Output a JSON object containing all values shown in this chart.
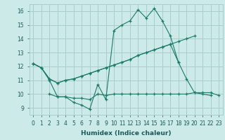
{
  "xlabel": "Humidex (Indice chaleur)",
  "bg_color": "#cceae7",
  "grid_color": "#aacccc",
  "line_color": "#1a7a6a",
  "ylim": [
    8.5,
    16.5
  ],
  "xlim": [
    -0.5,
    23.5
  ],
  "yticks": [
    9,
    10,
    11,
    12,
    13,
    14,
    15,
    16
  ],
  "xticks": [
    0,
    1,
    2,
    3,
    4,
    5,
    6,
    7,
    8,
    9,
    10,
    11,
    12,
    13,
    14,
    15,
    16,
    17,
    18,
    19,
    20,
    21,
    22,
    23
  ],
  "series": [
    {
      "x": [
        0,
        1,
        2,
        3,
        4,
        5,
        6,
        7,
        8,
        9,
        10,
        11,
        12,
        13,
        14,
        15,
        16,
        17,
        18
      ],
      "y": [
        12.2,
        11.9,
        11.0,
        9.8,
        9.8,
        9.4,
        9.2,
        8.9,
        10.7,
        9.6,
        14.6,
        15.0,
        15.3,
        16.1,
        15.5,
        16.2,
        15.3,
        14.2,
        12.3
      ]
    },
    {
      "x": [
        0,
        1,
        2,
        3,
        4,
        5,
        6,
        7,
        8,
        9,
        10,
        11,
        12,
        13,
        14,
        15,
        16,
        17,
        18,
        19,
        20
      ],
      "y": [
        12.2,
        11.9,
        11.1,
        10.8,
        11.0,
        11.1,
        11.3,
        11.5,
        11.7,
        11.9,
        12.1,
        12.3,
        12.5,
        12.8,
        13.0,
        13.2,
        13.4,
        13.6,
        13.8,
        14.0,
        14.2
      ]
    },
    {
      "x": [
        0,
        1,
        2,
        3,
        4,
        5,
        6,
        7,
        8,
        9,
        10,
        11,
        12,
        13,
        14,
        15,
        16,
        17,
        18,
        19,
        20,
        21,
        22
      ],
      "y": [
        12.2,
        11.9,
        11.1,
        10.8,
        11.0,
        11.1,
        11.3,
        11.5,
        11.7,
        11.9,
        12.1,
        12.3,
        12.5,
        12.8,
        13.0,
        13.2,
        13.4,
        13.6,
        12.3,
        11.1,
        10.1,
        10.0,
        9.9
      ]
    },
    {
      "x": [
        2,
        3,
        4,
        5,
        6,
        7,
        8,
        9,
        10,
        11,
        12,
        13,
        14,
        15,
        16,
        17,
        18,
        19,
        20,
        21,
        22,
        23
      ],
      "y": [
        10.0,
        9.8,
        9.8,
        9.7,
        9.7,
        9.6,
        10.0,
        9.9,
        10.0,
        10.0,
        10.0,
        10.0,
        10.0,
        10.0,
        10.0,
        10.0,
        10.0,
        10.0,
        10.1,
        10.1,
        10.1,
        9.9
      ]
    }
  ]
}
